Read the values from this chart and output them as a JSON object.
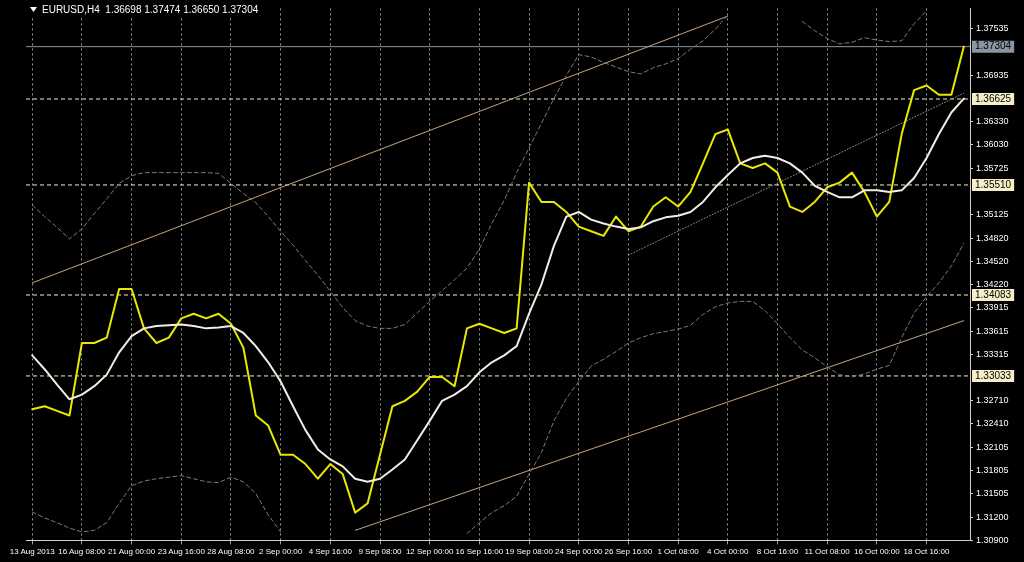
{
  "chart_data": {
    "type": "line",
    "title": "EURUSD,H4  1.36698 1.37474 1.36650 1.37304",
    "categories": [
      "13 Aug 2013",
      null,
      null,
      null,
      "16 Aug 08:00",
      null,
      null,
      null,
      "21 Aug 00:00",
      null,
      null,
      null,
      "23 Aug 16:00",
      null,
      null,
      null,
      "28 Aug 08:00",
      null,
      null,
      null,
      "2 Sep 00:00",
      null,
      null,
      null,
      "4 Sep 16:00",
      null,
      null,
      null,
      "9 Sep 08:00",
      null,
      null,
      null,
      "12 Sep 00:00",
      null,
      null,
      null,
      "16 Sep 16:00",
      null,
      null,
      null,
      "19 Sep 08:00",
      null,
      null,
      null,
      "24 Sep 00:00",
      null,
      null,
      null,
      "26 Sep 16:00",
      null,
      null,
      null,
      "1 Oct 08:00",
      null,
      null,
      null,
      "4 Oct 00:00",
      null,
      null,
      null,
      "8 Oct 16:00",
      null,
      null,
      null,
      "11 Oct 08:00",
      null,
      null,
      null,
      "16 Oct 00:00",
      null,
      null,
      null,
      "18 Oct 16:00",
      null,
      null,
      null
    ],
    "series": [
      {
        "color": "#f2ece4",
        "line_style": "solid",
        "values": [
          1.333,
          1.3312,
          1.3292,
          1.3273,
          1.3279,
          1.329,
          1.3305,
          1.3334,
          1.3355,
          1.3365,
          1.3368,
          1.3369,
          1.337,
          1.3368,
          1.3365,
          1.3366,
          1.3368,
          1.3359,
          1.3342,
          1.3321,
          1.3296,
          1.3264,
          1.3233,
          1.3208,
          1.3195,
          1.3186,
          1.317,
          1.3166,
          1.317,
          1.3182,
          1.3195,
          1.322,
          1.3245,
          1.3271,
          1.3279,
          1.329,
          1.3308,
          1.3321,
          1.333,
          1.3342,
          1.3384,
          1.3422,
          1.3472,
          1.351,
          1.3516,
          1.3506,
          1.3501,
          1.3497,
          1.3494,
          1.3496,
          1.3504,
          1.3509,
          1.3511,
          1.3516,
          1.3529,
          1.3548,
          1.3564,
          1.3579,
          1.3586,
          1.3589,
          1.3586,
          1.3579,
          1.3567,
          1.355,
          1.3542,
          1.3535,
          1.3535,
          1.3544,
          1.3544,
          1.3542,
          1.3544,
          1.356,
          1.3586,
          1.3617,
          1.3645,
          1.3663
        ]
      },
      {
        "color": "#e8e800",
        "line_style": "solid",
        "values": [
          1.326,
          1.3264,
          1.3258,
          1.3252,
          1.3346,
          1.3346,
          1.3353,
          1.3416,
          1.3416,
          1.3365,
          1.3346,
          1.3353,
          1.3378,
          1.3384,
          1.3378,
          1.3384,
          1.3371,
          1.334,
          1.3252,
          1.3239,
          1.3201,
          1.3201,
          1.3189,
          1.317,
          1.3189,
          1.3176,
          1.3126,
          1.3138,
          1.3201,
          1.3264,
          1.3271,
          1.3283,
          1.3302,
          1.3302,
          1.329,
          1.3365,
          1.3371,
          1.3365,
          1.3359,
          1.3365,
          1.3554,
          1.3529,
          1.3529,
          1.3516,
          1.3497,
          1.3491,
          1.3485,
          1.351,
          1.3491,
          1.3497,
          1.3523,
          1.3535,
          1.3523,
          1.3542,
          1.3579,
          1.3617,
          1.3623,
          1.3579,
          1.3573,
          1.3579,
          1.3567,
          1.3523,
          1.3516,
          1.3529,
          1.3548,
          1.3554,
          1.3567,
          1.3542,
          1.351,
          1.3529,
          1.3617,
          1.3674,
          1.368,
          1.3668,
          1.3668,
          1.37304
        ]
      },
      {
        "color": "#7a7a7a",
        "line_style": "dashed",
        "values": [
          1.3525,
          1.351,
          1.3496,
          1.3481,
          1.3494,
          1.3514,
          1.3533,
          1.3553,
          1.3563,
          1.3567,
          1.3567,
          1.3567,
          1.3567,
          1.3567,
          1.3567,
          1.3566,
          1.3553,
          1.354,
          1.3528,
          1.351,
          1.3491,
          1.3473,
          1.3453,
          1.3434,
          1.3413,
          1.3392,
          1.3375,
          1.3368,
          1.3365,
          1.3365,
          1.337,
          1.3385,
          1.34,
          1.3414,
          1.3428,
          1.3443,
          1.3468,
          1.3501,
          1.3531,
          1.3567,
          1.3599,
          1.3631,
          1.3663,
          1.3693,
          1.372,
          1.3717,
          1.371,
          1.3704,
          1.3698,
          1.3695,
          1.3703,
          1.3708,
          1.3715,
          1.3727,
          1.3738,
          1.3753,
          1.3771,
          null,
          null,
          null,
          null,
          null,
          null,
          null,
          null,
          null,
          null,
          null,
          null,
          null,
          null,
          null,
          null,
          null,
          null,
          null
        ]
      },
      {
        "color": "#7a7a7a",
        "line_style": "dashed",
        "values": [
          null,
          null,
          null,
          null,
          null,
          null,
          null,
          null,
          null,
          null,
          null,
          null,
          null,
          null,
          null,
          null,
          null,
          null,
          null,
          null,
          null,
          null,
          null,
          null,
          null,
          null,
          null,
          null,
          null,
          null,
          null,
          null,
          null,
          null,
          null,
          null,
          null,
          null,
          null,
          null,
          null,
          null,
          null,
          null,
          null,
          null,
          null,
          null,
          null,
          null,
          null,
          null,
          null,
          null,
          null,
          null,
          null,
          null,
          null,
          null,
          null,
          null,
          1.3763,
          1.3751,
          1.3741,
          1.3734,
          1.3736,
          1.3742,
          1.3739,
          1.3737,
          1.3738,
          1.376,
          1.3777,
          null,
          null,
          null
        ]
      },
      {
        "color": "#7a7a7a",
        "line_style": "dashed",
        "values": [
          1.3127,
          1.3119,
          1.3113,
          1.3106,
          1.3101,
          1.3103,
          1.3113,
          1.3138,
          1.3161,
          1.3167,
          1.317,
          1.3172,
          1.3174,
          1.317,
          1.3166,
          1.3165,
          1.3172,
          1.3166,
          1.3151,
          1.3123,
          1.3101,
          null,
          null,
          null,
          null,
          null,
          null,
          null,
          null,
          null,
          null,
          null,
          null,
          null,
          null,
          null,
          null,
          null,
          null,
          null,
          null,
          null,
          null,
          null,
          null,
          null,
          null,
          null,
          null,
          null,
          null,
          null,
          null,
          null,
          null,
          null,
          null,
          null,
          null,
          null,
          null,
          null,
          null,
          null,
          null,
          null,
          null,
          null,
          null,
          null,
          null,
          null,
          null,
          null,
          null,
          null
        ]
      },
      {
        "color": "#7a7a7a",
        "line_style": "dashed",
        "values": [
          null,
          null,
          null,
          null,
          null,
          null,
          null,
          null,
          null,
          null,
          null,
          null,
          null,
          null,
          null,
          null,
          null,
          null,
          null,
          null,
          null,
          null,
          null,
          null,
          null,
          null,
          null,
          null,
          null,
          null,
          null,
          null,
          null,
          null,
          null,
          1.3099,
          1.3113,
          1.3126,
          1.3135,
          1.3147,
          1.3176,
          1.3204,
          1.3245,
          1.3274,
          1.3296,
          1.3316,
          1.3325,
          1.3335,
          1.3346,
          1.3353,
          1.3358,
          1.3361,
          1.3364,
          1.3369,
          1.3383,
          1.3393,
          1.3398,
          1.34,
          1.34,
          1.3388,
          1.3371,
          1.3353,
          1.3337,
          1.3327,
          1.3315,
          1.3305,
          1.3302,
          1.3306,
          1.3312,
          1.3317,
          1.3353,
          1.3385,
          1.3406,
          1.3424,
          1.3446,
          1.3475
        ]
      },
      {
        "color": "#c8a47e",
        "line_style": "solid",
        "values": [
          1.3424,
          null,
          null,
          null,
          null,
          null,
          null,
          null,
          null,
          null,
          null,
          null,
          null,
          null,
          null,
          null,
          null,
          null,
          null,
          null,
          null,
          null,
          null,
          null,
          null,
          null,
          null,
          null,
          null,
          null,
          null,
          null,
          null,
          null,
          null,
          null,
          null,
          null,
          null,
          null,
          null,
          null,
          null,
          null,
          null,
          null,
          null,
          null,
          null,
          null,
          null,
          null,
          null,
          null,
          null,
          null,
          1.377,
          null,
          null,
          null,
          null,
          null,
          null,
          null,
          null,
          null,
          null,
          null,
          null,
          null,
          null,
          null,
          null,
          null,
          null,
          null
        ]
      },
      {
        "color": "#c8a47e",
        "line_style": "solid",
        "values": [
          null,
          null,
          null,
          null,
          null,
          null,
          null,
          null,
          null,
          null,
          null,
          null,
          null,
          null,
          null,
          null,
          null,
          null,
          null,
          null,
          null,
          null,
          null,
          null,
          null,
          null,
          1.3103,
          null,
          null,
          null,
          null,
          null,
          null,
          null,
          null,
          null,
          null,
          null,
          null,
          null,
          null,
          null,
          null,
          null,
          null,
          null,
          null,
          null,
          null,
          null,
          null,
          null,
          null,
          null,
          null,
          null,
          null,
          null,
          null,
          null,
          null,
          null,
          null,
          null,
          null,
          null,
          null,
          null,
          null,
          null,
          null,
          null,
          null,
          null,
          null,
          1.3375
        ]
      },
      {
        "color": "#8a8a8a",
        "line_style": "dotted",
        "values": [
          null,
          null,
          null,
          null,
          null,
          null,
          null,
          null,
          null,
          null,
          null,
          null,
          null,
          null,
          null,
          null,
          null,
          null,
          null,
          null,
          null,
          null,
          null,
          null,
          null,
          null,
          null,
          null,
          null,
          null,
          null,
          null,
          null,
          null,
          null,
          null,
          null,
          null,
          null,
          null,
          null,
          null,
          null,
          null,
          null,
          null,
          null,
          null,
          1.346,
          null,
          null,
          null,
          null,
          null,
          null,
          null,
          null,
          null,
          null,
          null,
          null,
          null,
          null,
          null,
          null,
          null,
          null,
          null,
          null,
          null,
          null,
          null,
          null,
          null,
          null,
          1.367
        ]
      }
    ],
    "ylim": [
      1.309,
      1.378
    ],
    "yticks": [
      1.37535,
      1.36935,
      {
        "value": 1.3633,
        "label": "1.36330"
      },
      {
        "value": 1.3603,
        "label": "1.36030"
      },
      1.35725,
      1.35125,
      {
        "value": 1.3482,
        "label": "1.34820"
      },
      {
        "value": 1.3452,
        "label": "1.34520"
      },
      {
        "value": 1.3422,
        "label": "1.34220"
      },
      1.33915,
      1.33615,
      1.33315,
      {
        "value": 1.3271,
        "label": "1.32710"
      },
      {
        "value": 1.3241,
        "label": "1.32410"
      },
      1.32105,
      1.31805,
      1.31505,
      {
        "value": 1.312,
        "label": "1.31200"
      },
      {
        "value": 1.309,
        "label": "1.30900"
      }
    ],
    "ref_lines": [
      {
        "axis": "y",
        "value": 1.37304,
        "label": "1.37304",
        "color": "#8896a4",
        "line_style": "solid"
      },
      {
        "axis": "y",
        "value": 1.36625,
        "label": "1.36625",
        "color": "#f5efc8",
        "line_style": "dashed"
      },
      {
        "axis": "y",
        "value": 1.3551,
        "label": "1.35510",
        "color": "#f5efc8",
        "line_style": "dashed"
      },
      {
        "axis": "y",
        "value": 1.34083,
        "label": "1.34083",
        "color": "#f5efc8",
        "line_style": "dashed"
      },
      {
        "axis": "y",
        "value": 1.33033,
        "label": "1.33033",
        "color": "#f5efc8",
        "line_style": "dashed"
      }
    ],
    "grid": "x"
  }
}
